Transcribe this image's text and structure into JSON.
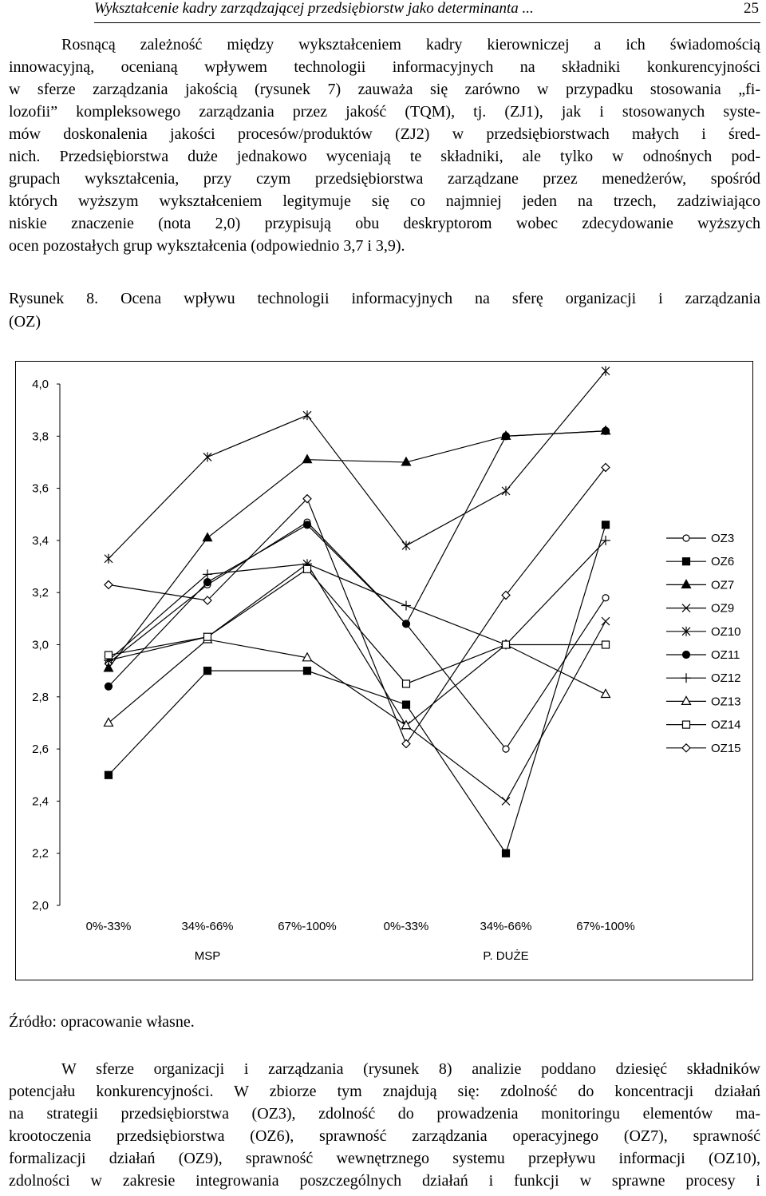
{
  "header": {
    "running_title": "Wykształcenie kadry zarządzającej przedsiębiorstw jako determinanta ...",
    "page_number": "25"
  },
  "paragraph1_lines": [
    "Rosnącą zależność między wykształceniem kadry kierowniczej a ich świadomością",
    "innowacyjną, ocenianą wpływem technologii informacyjnych na składniki konkurencyjności",
    "w sferze zarządzania jakością (rysunek 7) zauważa się zarówno w przypadku stosowania „fi-",
    "lozofii” kompleksowego zarządzania przez jakość (TQM), tj. (ZJ1), jak i stosowanych syste-",
    "mów doskonalenia jakości procesów/produktów (ZJ2) w przedsiębiorstwach małych i śred-",
    "nich. Przedsiębiorstwa duże jednakowo wyceniają te składniki, ale tylko w odnośnych pod-",
    "grupach wykształcenia, przy czym przedsiębiorstwa zarządzane przez menedżerów, spośród",
    "których wyższym wykształceniem legitymuje się co najmniej jeden na trzech, zadziwiająco",
    "niskie znaczenie (nota 2,0) przypisują obu deskryptorom wobec zdecydowanie wyższych",
    "ocen pozostałych grup wykształcenia (odpowiednio 3,7 i 3,9)."
  ],
  "figure_caption_lines": [
    "Rysunek 8. Ocena wpływu technologii informacyjnych na sferę organizacji i zarządzania",
    "(OZ)"
  ],
  "source_note": "Źródło: opracowanie własne.",
  "paragraph2_lines": [
    "W sferze organizacji i zarządzania (rysunek 8) analizie poddano dziesięć składników",
    "potencjału konkurencyjności. W zbiorze tym znajdują się: zdolność do koncentracji działań",
    "na strategii przedsiębiorstwa (OZ3), zdolność do prowadzenia monitoringu elementów ma-",
    "krootoczenia przedsiębiorstwa (OZ6), sprawność zarządzania operacyjnego (OZ7), sprawność",
    "formalizacji działań (OZ9), sprawność wewnętrznego systemu przepływu informacji (OZ10),",
    "zdolności w zakresie integrowania poszczególnych działań i funkcji w sprawne procesy i"
  ],
  "chart_data": {
    "type": "line",
    "categories": [
      "0%-33%",
      "34%-66%",
      "67%-100%",
      "0%-33%",
      "34%-66%",
      "67%-100%"
    ],
    "groups": [
      {
        "label": "MSP",
        "categories": [
          "0%-33%",
          "34%-66%",
          "67%-100%"
        ]
      },
      {
        "label": "P. DUŻE",
        "categories": [
          "0%-33%",
          "34%-66%",
          "67%-100%"
        ]
      }
    ],
    "ylim": [
      2.0,
      4.0
    ],
    "yticks": [
      "2,0",
      "2,2",
      "2,4",
      "2,6",
      "2,8",
      "3,0",
      "3,2",
      "3,4",
      "3,6",
      "3,8",
      "4,0"
    ],
    "grid": false,
    "legend_position": "right",
    "series": [
      {
        "name": "OZ3",
        "marker": "circle-open",
        "values": [
          2.93,
          3.23,
          3.47,
          3.08,
          2.6,
          3.18
        ]
      },
      {
        "name": "OZ6",
        "marker": "square-filled",
        "values": [
          2.5,
          2.9,
          2.9,
          2.77,
          2.2,
          3.46
        ]
      },
      {
        "name": "OZ7",
        "marker": "triangle-filled",
        "values": [
          2.91,
          3.41,
          3.71,
          3.7,
          3.8,
          3.82
        ]
      },
      {
        "name": "OZ9",
        "marker": "x",
        "values": [
          2.94,
          3.03,
          3.31,
          2.69,
          2.4,
          3.09
        ]
      },
      {
        "name": "OZ10",
        "marker": "star",
        "values": [
          3.33,
          3.72,
          3.88,
          3.38,
          3.59,
          4.05
        ]
      },
      {
        "name": "OZ11",
        "marker": "circle-filled",
        "values": [
          2.84,
          3.24,
          3.46,
          3.08,
          3.8,
          3.82
        ]
      },
      {
        "name": "OZ12",
        "marker": "plus",
        "values": [
          2.94,
          3.27,
          3.31,
          3.15,
          3.0,
          3.4
        ]
      },
      {
        "name": "OZ13",
        "marker": "triangle-open",
        "values": [
          2.7,
          3.02,
          2.95,
          2.69,
          3.0,
          2.81
        ]
      },
      {
        "name": "OZ14",
        "marker": "square-open",
        "values": [
          2.96,
          3.03,
          3.29,
          2.85,
          3.0,
          3.0
        ]
      },
      {
        "name": "OZ15",
        "marker": "diamond-open",
        "values": [
          3.23,
          3.17,
          3.56,
          2.62,
          3.19,
          3.68
        ]
      }
    ]
  }
}
